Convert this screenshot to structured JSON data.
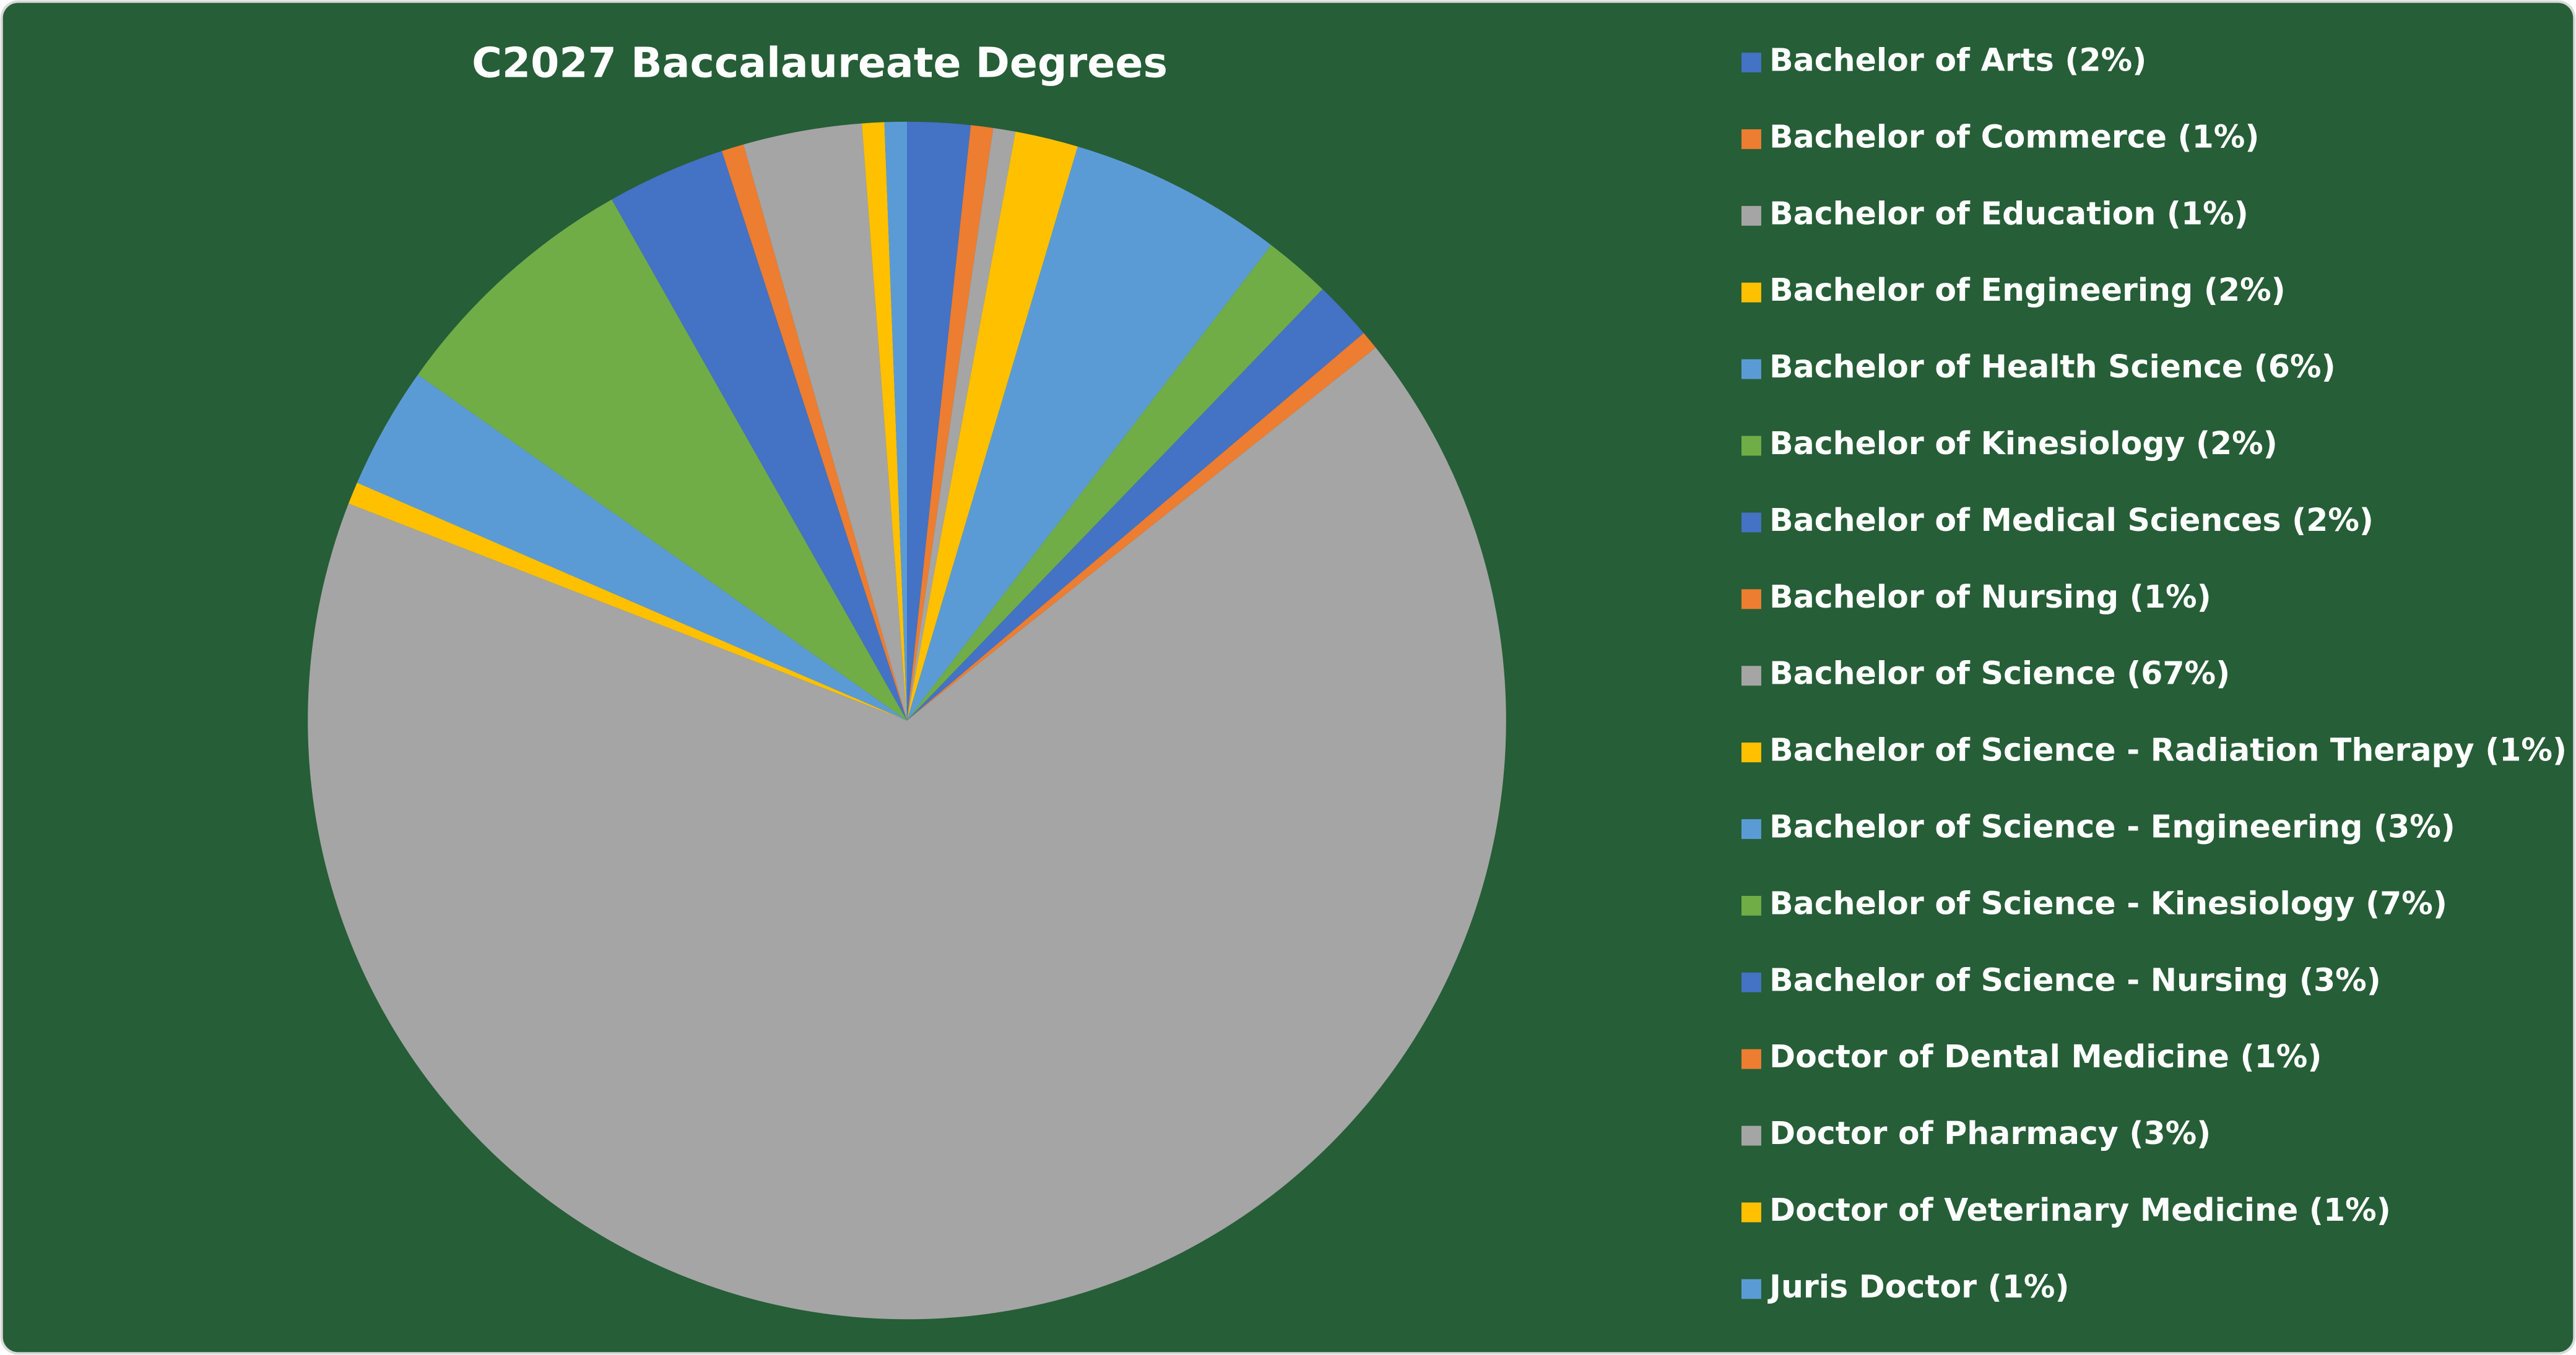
{
  "chart_data": {
    "type": "pie",
    "title": "C2027 Baccalaureate Degrees",
    "categories": [
      "Bachelor of Arts (2%)",
      "Bachelor of Commerce (1%)",
      "Bachelor of Education (1%)",
      "Bachelor of Engineering (2%)",
      "Bachelor of Health Science (6%)",
      "Bachelor of Kinesiology (2%)",
      "Bachelor of Medical Sciences (2%)",
      "Bachelor of Nursing (1%)",
      "Bachelor of Science (67%)",
      "Bachelor of Science - Radiation Therapy (1%)",
      "Bachelor of Science - Engineering (3%)",
      "Bachelor of Science - Kinesiology (7%)",
      "Bachelor of Science - Nursing (3%)",
      "Doctor of Dental Medicine (1%)",
      "Doctor of Pharmacy (3%)",
      "Doctor of Veterinary Medicine (1%)",
      "Juris Doctor (1%)"
    ],
    "values": [
      1.7,
      0.6,
      0.6,
      1.7,
      5.8,
      1.8,
      1.6,
      0.5,
      66.6,
      0.6,
      3.3,
      7.0,
      3.2,
      0.6,
      3.2,
      0.6,
      0.6
    ],
    "colors": [
      "#4472c4",
      "#ed7d31",
      "#a5a5a5",
      "#ffc000",
      "#5b9bd5",
      "#70ad47",
      "#4472c4",
      "#ed7d31",
      "#a5a5a5",
      "#ffc000",
      "#5b9bd5",
      "#70ad47",
      "#4472c4",
      "#ed7d31",
      "#a5a5a5",
      "#ffc000",
      "#5b9bd5"
    ],
    "legend": "right"
  }
}
